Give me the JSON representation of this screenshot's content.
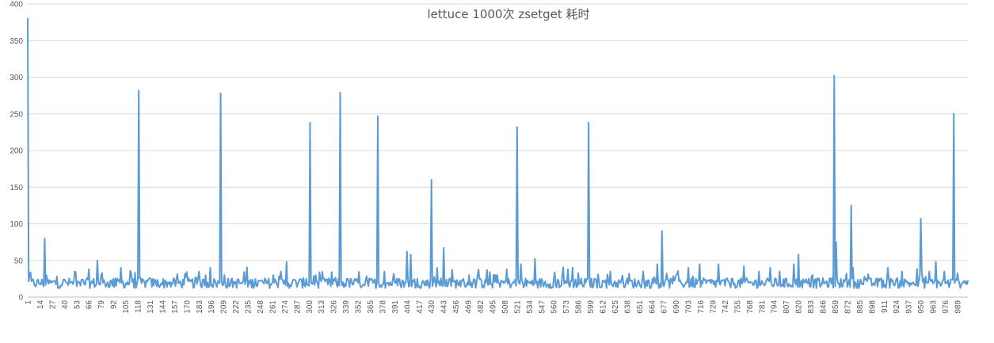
{
  "chart_data": {
    "type": "line",
    "title": "lettuce 1000次 zsetget 耗时",
    "xlabel": "",
    "ylabel": "",
    "ylim": [
      0,
      400
    ],
    "yticks": [
      0,
      50,
      100,
      150,
      200,
      250,
      300,
      350,
      400
    ],
    "xlim": [
      1,
      1000
    ],
    "xtick_step": 13,
    "xticks_start": 1,
    "xticks_end": 989,
    "grid": true,
    "legend": "none",
    "color": "#5b9bd5",
    "series": [
      {
        "baseline": 20,
        "spikes": [
          {
            "x": 1,
            "y": 380
          },
          {
            "x": 3,
            "y": 30
          },
          {
            "x": 19,
            "y": 80
          },
          {
            "x": 30,
            "y": 22
          },
          {
            "x": 40,
            "y": 24
          },
          {
            "x": 51,
            "y": 35
          },
          {
            "x": 66,
            "y": 38
          },
          {
            "x": 75,
            "y": 50
          },
          {
            "x": 79,
            "y": 30
          },
          {
            "x": 100,
            "y": 40
          },
          {
            "x": 110,
            "y": 36
          },
          {
            "x": 119,
            "y": 282
          },
          {
            "x": 131,
            "y": 26
          },
          {
            "x": 150,
            "y": 20
          },
          {
            "x": 168,
            "y": 32
          },
          {
            "x": 180,
            "y": 27
          },
          {
            "x": 190,
            "y": 30
          },
          {
            "x": 195,
            "y": 40
          },
          {
            "x": 206,
            "y": 278
          },
          {
            "x": 210,
            "y": 30
          },
          {
            "x": 230,
            "y": 22
          },
          {
            "x": 262,
            "y": 30
          },
          {
            "x": 270,
            "y": 35
          },
          {
            "x": 276,
            "y": 48
          },
          {
            "x": 297,
            "y": 25
          },
          {
            "x": 301,
            "y": 238
          },
          {
            "x": 307,
            "y": 30
          },
          {
            "x": 318,
            "y": 24
          },
          {
            "x": 333,
            "y": 279
          },
          {
            "x": 340,
            "y": 25
          },
          {
            "x": 350,
            "y": 22
          },
          {
            "x": 360,
            "y": 22
          },
          {
            "x": 373,
            "y": 247
          },
          {
            "x": 380,
            "y": 35
          },
          {
            "x": 395,
            "y": 25
          },
          {
            "x": 404,
            "y": 62
          },
          {
            "x": 408,
            "y": 58
          },
          {
            "x": 415,
            "y": 25
          },
          {
            "x": 430,
            "y": 160
          },
          {
            "x": 436,
            "y": 40
          },
          {
            "x": 443,
            "y": 67
          },
          {
            "x": 460,
            "y": 22
          },
          {
            "x": 470,
            "y": 30
          },
          {
            "x": 482,
            "y": 25
          },
          {
            "x": 500,
            "y": 30
          },
          {
            "x": 510,
            "y": 38
          },
          {
            "x": 521,
            "y": 232
          },
          {
            "x": 525,
            "y": 45
          },
          {
            "x": 540,
            "y": 52
          },
          {
            "x": 560,
            "y": 25
          },
          {
            "x": 575,
            "y": 38
          },
          {
            "x": 580,
            "y": 40
          },
          {
            "x": 597,
            "y": 238
          },
          {
            "x": 603,
            "y": 25
          },
          {
            "x": 620,
            "y": 35
          },
          {
            "x": 640,
            "y": 32
          },
          {
            "x": 655,
            "y": 35
          },
          {
            "x": 670,
            "y": 45
          },
          {
            "x": 675,
            "y": 90
          },
          {
            "x": 690,
            "y": 30
          },
          {
            "x": 703,
            "y": 40
          },
          {
            "x": 715,
            "y": 45
          },
          {
            "x": 735,
            "y": 45
          },
          {
            "x": 750,
            "y": 25
          },
          {
            "x": 762,
            "y": 42
          },
          {
            "x": 778,
            "y": 35
          },
          {
            "x": 790,
            "y": 40
          },
          {
            "x": 800,
            "y": 35
          },
          {
            "x": 815,
            "y": 45
          },
          {
            "x": 820,
            "y": 58
          },
          {
            "x": 835,
            "y": 30
          },
          {
            "x": 858,
            "y": 302
          },
          {
            "x": 860,
            "y": 75
          },
          {
            "x": 865,
            "y": 25
          },
          {
            "x": 876,
            "y": 125
          },
          {
            "x": 878,
            "y": 40
          },
          {
            "x": 890,
            "y": 28
          },
          {
            "x": 905,
            "y": 25
          },
          {
            "x": 915,
            "y": 40
          },
          {
            "x": 930,
            "y": 35
          },
          {
            "x": 950,
            "y": 107
          },
          {
            "x": 955,
            "y": 28
          },
          {
            "x": 966,
            "y": 48
          },
          {
            "x": 975,
            "y": 35
          },
          {
            "x": 985,
            "y": 250
          },
          {
            "x": 995,
            "y": 20
          },
          {
            "x": 1000,
            "y": 22
          }
        ]
      }
    ]
  }
}
